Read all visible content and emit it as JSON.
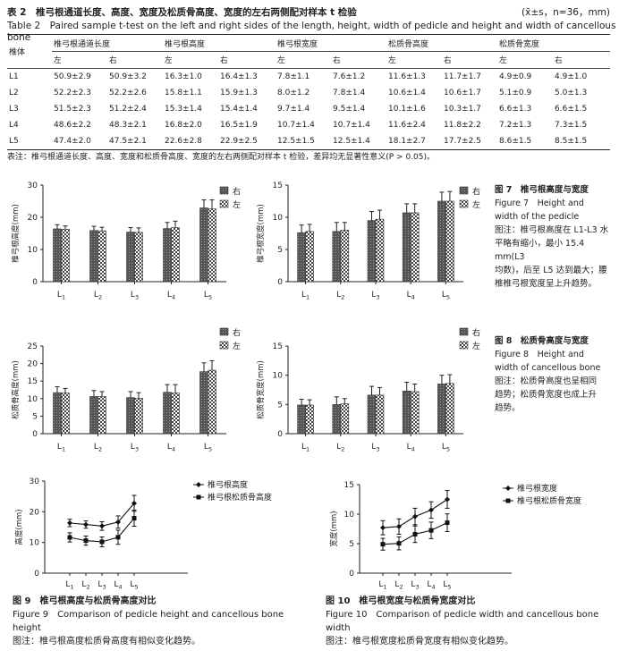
{
  "table": {
    "title": "表 2　椎弓根通道长度、高度、宽度及松质骨高度、宽度的左右两侧配对样本 t 检验",
    "meta": "(x̄±s，n=36，mm)",
    "title_en": "Table 2　Paired sample t-test on the left and right sides of the length, height, width of pedicle and height and width of cancellous bone",
    "group_headers": [
      "椎体",
      "椎弓根通道长度",
      "椎弓根高度",
      "椎弓根宽度",
      "松质骨高度",
      "松质骨宽度"
    ],
    "sub_headers": [
      "左",
      "右",
      "左",
      "右",
      "左",
      "右",
      "左",
      "右",
      "左",
      "右"
    ],
    "rows": [
      {
        "label": "L1",
        "cells": [
          "50.9±2.9",
          "50.9±3.2",
          "16.3±1.0",
          "16.4±1.3",
          "7.8±1.1",
          "7.6±1.2",
          "11.6±1.3",
          "11.7±1.7",
          "4.9±0.9",
          "4.9±1.0"
        ]
      },
      {
        "label": "L2",
        "cells": [
          "52.2±2.3",
          "52.2±2.6",
          "15.8±1.1",
          "15.9±1.3",
          "8.0±1.2",
          "7.8±1.4",
          "10.6±1.4",
          "10.6±1.7",
          "5.1±0.9",
          "5.0±1.3"
        ]
      },
      {
        "label": "L3",
        "cells": [
          "51.5±2.3",
          "51.2±2.4",
          "15.3±1.4",
          "15.4±1.4",
          "9.7±1.4",
          "9.5±1.4",
          "10.1±1.6",
          "10.3±1.7",
          "6.6±1.3",
          "6.6±1.5"
        ]
      },
      {
        "label": "L4",
        "cells": [
          "48.6±2.2",
          "48.3±2.1",
          "16.8±2.0",
          "16.5±1.9",
          "10.7±1.4",
          "10.7±1.4",
          "11.6±2.4",
          "11.8±2.2",
          "7.2±1.3",
          "7.3±1.5"
        ]
      },
      {
        "label": "L5",
        "cells": [
          "47.4±2.0",
          "47.5±2.1",
          "22.6±2.8",
          "22.9±2.5",
          "12.5±1.5",
          "12.5±1.4",
          "18.1±2.7",
          "17.7±2.5",
          "8.6±1.5",
          "8.5±1.5"
        ]
      }
    ],
    "note": "表注：椎弓根通道长度、高度、宽度和松质骨高度、宽度的左右两侧配对样本 t 检验，差异均无显著性意义(P > 0.05)。"
  },
  "figures": {
    "fig7": {
      "title": "图 7　椎弓根高度与宽度",
      "title_en": [
        "Figure 7　Height and",
        "width of the pedicle"
      ],
      "note": [
        "图注：椎弓根高度在 L1-L3 水",
        "平略有缩小，最小 15.4 mm(L3",
        "均数)，后至 L5 达到最大；腰",
        "椎椎弓根宽度呈上升趋势。"
      ]
    },
    "fig8": {
      "title": "图 8　松质骨高度与宽度",
      "title_en": [
        "Figure 8　Height and",
        "width of cancellous bone"
      ],
      "note": [
        "图注：松质骨高度也呈相同",
        "趋势；松质骨宽度也成上升",
        "趋势。"
      ]
    },
    "fig9": {
      "title": "图 9　椎弓根高度与松质骨高度对比",
      "title_en": [
        "Figure 9　Comparison of pedicle height and cancellous bone",
        "height"
      ],
      "note": "图注：椎弓根高度松质骨高度有相似变化趋势。"
    },
    "fig10": {
      "title": "图 10　椎弓根宽度与松质骨宽度对比",
      "title_en": "Figure 10　Comparison of pedicle width and cancellous bone width",
      "note": "图注：椎弓根宽度松质骨宽度有相似变化趋势。"
    }
  },
  "chart_data": [
    {
      "id": "fig7-height",
      "type": "bar",
      "categories": [
        "L1",
        "L2",
        "L3",
        "L4",
        "L5"
      ],
      "ylabel": "椎弓根高度(mm)",
      "ylim": [
        0,
        30
      ],
      "yticks": [
        0,
        10,
        20,
        30
      ],
      "legend": "top-right",
      "series": [
        {
          "name": "右",
          "values": [
            16.4,
            15.9,
            15.4,
            16.5,
            22.9
          ],
          "err": [
            1.3,
            1.3,
            1.4,
            1.9,
            2.5
          ],
          "pattern": "dark"
        },
        {
          "name": "左",
          "values": [
            16.3,
            15.8,
            15.3,
            16.8,
            22.6
          ],
          "err": [
            1.0,
            1.1,
            1.4,
            2.0,
            2.8
          ],
          "pattern": "check"
        }
      ]
    },
    {
      "id": "fig7-width",
      "type": "bar",
      "categories": [
        "L1",
        "L2",
        "L3",
        "L4",
        "L5"
      ],
      "ylabel": "椎弓根宽度(mm)",
      "ylim": [
        0,
        15
      ],
      "yticks": [
        0,
        5,
        10,
        15
      ],
      "legend": "right",
      "series": [
        {
          "name": "右",
          "values": [
            7.6,
            7.8,
            9.5,
            10.7,
            12.5
          ],
          "err": [
            1.2,
            1.4,
            1.4,
            1.4,
            1.4
          ],
          "pattern": "dark"
        },
        {
          "name": "左",
          "values": [
            7.8,
            8.0,
            9.7,
            10.7,
            12.5
          ],
          "err": [
            1.1,
            1.2,
            1.4,
            1.4,
            1.5
          ],
          "pattern": "check"
        }
      ]
    },
    {
      "id": "fig8-height",
      "type": "bar",
      "categories": [
        "L1",
        "L2",
        "L3",
        "L4",
        "L5"
      ],
      "ylabel": "松质骨高度(mm)",
      "ylim": [
        0,
        25
      ],
      "yticks": [
        0,
        5,
        10,
        15,
        20,
        25
      ],
      "legend": "top-right",
      "series": [
        {
          "name": "右",
          "values": [
            11.7,
            10.6,
            10.3,
            11.8,
            17.7
          ],
          "err": [
            1.7,
            1.7,
            1.7,
            2.2,
            2.5
          ],
          "pattern": "dark"
        },
        {
          "name": "左",
          "values": [
            11.6,
            10.6,
            10.1,
            11.6,
            18.1
          ],
          "err": [
            1.3,
            1.4,
            1.6,
            2.4,
            2.7
          ],
          "pattern": "check"
        }
      ]
    },
    {
      "id": "fig8-width",
      "type": "bar",
      "categories": [
        "L1",
        "L2",
        "L3",
        "L4",
        "L5"
      ],
      "ylabel": "松质骨宽度(mm)",
      "ylim": [
        0,
        15
      ],
      "yticks": [
        0,
        5,
        10,
        15
      ],
      "legend": "right",
      "series": [
        {
          "name": "右",
          "values": [
            4.9,
            5.0,
            6.6,
            7.3,
            8.5
          ],
          "err": [
            1.0,
            1.3,
            1.5,
            1.5,
            1.5
          ],
          "pattern": "dark"
        },
        {
          "name": "左",
          "values": [
            4.9,
            5.1,
            6.6,
            7.2,
            8.6
          ],
          "err": [
            0.9,
            0.9,
            1.3,
            1.3,
            1.5
          ],
          "pattern": "check"
        }
      ]
    },
    {
      "id": "fig9",
      "type": "line",
      "categories": [
        "L1",
        "L2",
        "L3",
        "L4",
        "L5"
      ],
      "ylabel": "高度(mm)",
      "ylim": [
        0,
        30
      ],
      "yticks": [
        0,
        10,
        20,
        30
      ],
      "legend": "top",
      "series": [
        {
          "name": "椎弓根高度",
          "values": [
            16.35,
            15.85,
            15.35,
            16.65,
            22.75
          ],
          "err": [
            1.2,
            1.2,
            1.4,
            2.0,
            2.6
          ],
          "marker": "diamond"
        },
        {
          "name": "椎弓根松质骨高度",
          "values": [
            11.65,
            10.6,
            10.2,
            11.7,
            17.9
          ],
          "err": [
            1.5,
            1.5,
            1.6,
            2.3,
            2.6
          ],
          "marker": "square"
        }
      ]
    },
    {
      "id": "fig10",
      "type": "line",
      "categories": [
        "L1",
        "L2",
        "L3",
        "L4",
        "L5"
      ],
      "ylabel": "宽度(mm)",
      "ylim": [
        0,
        15
      ],
      "yticks": [
        0,
        5,
        10,
        15
      ],
      "legend": "top",
      "series": [
        {
          "name": "椎弓根宽度",
          "values": [
            7.7,
            7.9,
            9.6,
            10.7,
            12.5
          ],
          "err": [
            1.2,
            1.3,
            1.4,
            1.4,
            1.5
          ],
          "marker": "diamond"
        },
        {
          "name": "椎弓根松质骨宽度",
          "values": [
            4.9,
            5.05,
            6.6,
            7.25,
            8.55
          ],
          "err": [
            1.0,
            1.1,
            1.4,
            1.4,
            1.5
          ],
          "marker": "square"
        }
      ]
    }
  ]
}
